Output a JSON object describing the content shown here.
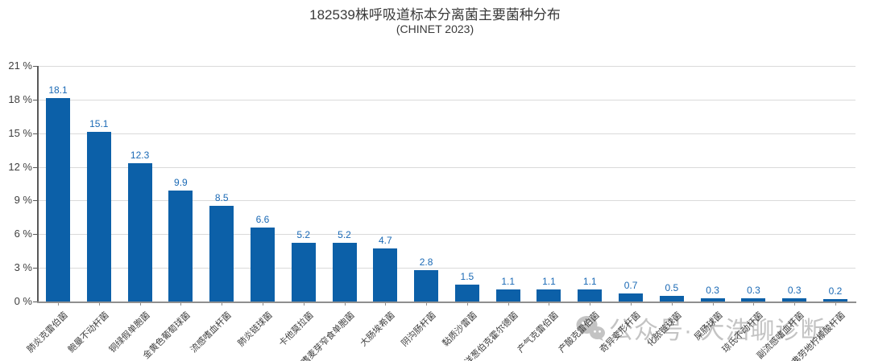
{
  "header": {
    "title": "182539株呼吸道标本分离菌主要菌种分布",
    "subtitle": "(CHINET 2023)"
  },
  "watermark": {
    "icon": "wechat-icon",
    "text": "公众号· 大浩聊诊断"
  },
  "chart_data": {
    "type": "bar",
    "title": "182539株呼吸道标本分离菌主要菌种分布",
    "subtitle": "(CHINET 2023)",
    "categories": [
      "肺炎克雷伯菌",
      "鲍曼不动杆菌",
      "铜绿假单胞菌",
      "金黄色葡萄球菌",
      "流感嗜血杆菌",
      "肺炎链球菌",
      "卡他莫拉菌",
      "嗜麦芽窄食单胞菌",
      "大肠埃希菌",
      "阴沟肠杆菌",
      "黏质沙雷菌",
      "洋葱伯克霍尔德菌",
      "产气克雷伯菌",
      "产酸克雷伯菌",
      "奇异变形杆菌",
      "化脓链球菌",
      "屎肠球菌",
      "琼氏不动杆菌",
      "副流感嗜血杆菌",
      "弗劳地柠檬酸杆菌"
    ],
    "values": [
      18.1,
      15.1,
      12.3,
      9.9,
      8.5,
      6.6,
      5.2,
      5.2,
      4.7,
      2.8,
      1.5,
      1.1,
      1.1,
      1.1,
      0.7,
      0.5,
      0.3,
      0.3,
      0.3,
      0.2
    ],
    "xlabel": "",
    "ylabel": "",
    "ylim": [
      0,
      21
    ],
    "ytick_step": 3,
    "ytick_labels": [
      "0 %",
      "3 %",
      "6 %",
      "9 %",
      "12 %",
      "15 %",
      "18 %",
      "21 %"
    ],
    "grid": true,
    "legend": "none",
    "bar_color": "#0c60a8",
    "value_label_color": "#1a69b5"
  }
}
